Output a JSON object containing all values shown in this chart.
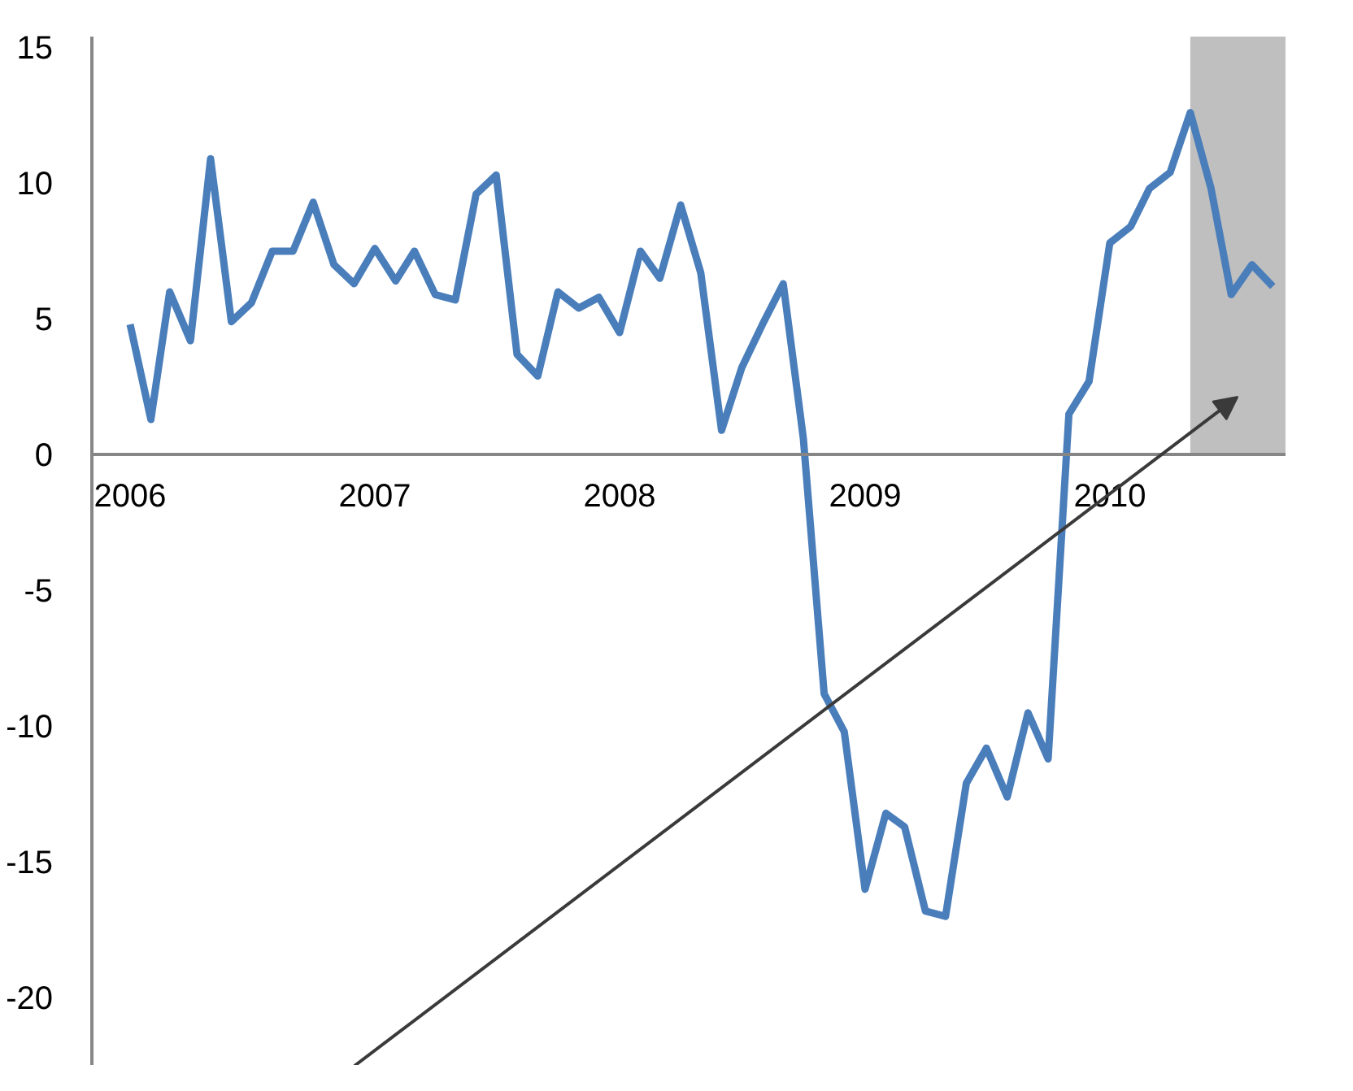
{
  "chart_data": {
    "type": "line",
    "x": [
      "2006-01",
      "2006-02",
      "2006-03",
      "2006-04",
      "2006-05",
      "2006-06",
      "2006-07",
      "2006-08",
      "2006-09",
      "2006-10",
      "2006-11",
      "2006-12",
      "2007-01",
      "2007-02",
      "2007-03",
      "2007-04",
      "2007-05",
      "2007-06",
      "2007-07",
      "2007-08",
      "2007-09",
      "2007-10",
      "2007-11",
      "2007-12",
      "2008-01",
      "2008-02",
      "2008-03",
      "2008-04",
      "2008-05",
      "2008-06",
      "2008-07",
      "2008-08",
      "2008-09",
      "2008-10",
      "2008-11",
      "2008-12",
      "2009-01",
      "2009-02",
      "2009-03",
      "2009-04",
      "2009-05",
      "2009-06",
      "2009-07",
      "2009-08",
      "2009-09",
      "2009-10",
      "2009-11",
      "2009-12",
      "2010-01",
      "2010-02",
      "2010-03",
      "2010-04",
      "2010-05",
      "2010-06",
      "2010-07",
      "2010-08",
      "2010-09"
    ],
    "series": [
      {
        "color": "#4a7ebb",
        "values": [
          4.8,
          1.3,
          6.0,
          4.2,
          10.9,
          4.9,
          5.6,
          7.5,
          7.5,
          9.3,
          7.0,
          6.3,
          7.6,
          6.4,
          7.5,
          5.9,
          5.7,
          9.6,
          10.3,
          3.7,
          2.9,
          6.0,
          5.4,
          5.8,
          4.5,
          7.5,
          6.5,
          9.2,
          6.7,
          0.9,
          3.2,
          4.8,
          6.3,
          0.6,
          -8.8,
          -10.2,
          -16.0,
          -13.2,
          -13.7,
          -16.8,
          -17.0,
          -12.1,
          -10.8,
          -12.6,
          -9.5,
          -11.2,
          1.5,
          2.7,
          7.8,
          8.4,
          9.8,
          10.4,
          12.6,
          9.8,
          5.9,
          7.0,
          6.2
        ]
      }
    ],
    "xlim": [
      "2005-11-05",
      "2010-09-20"
    ],
    "xticks": [
      {
        "value": "2006-01",
        "label": "2006"
      },
      {
        "value": "2007-01",
        "label": "2007"
      },
      {
        "value": "2008-01",
        "label": "2008"
      },
      {
        "value": "2009-01",
        "label": "2009"
      },
      {
        "value": "2010-01",
        "label": "2010"
      }
    ],
    "ylim": [
      -22.5,
      15.4
    ],
    "yticks": [
      -20,
      -15,
      -10,
      -5,
      0,
      5,
      10,
      15
    ],
    "bands": [
      {
        "axis": "x",
        "from": "2010-05-01",
        "to": "2010-09-20",
        "color": "#bfbfbf"
      }
    ],
    "grid": false,
    "line_style": "solid",
    "marker": "none"
  }
}
